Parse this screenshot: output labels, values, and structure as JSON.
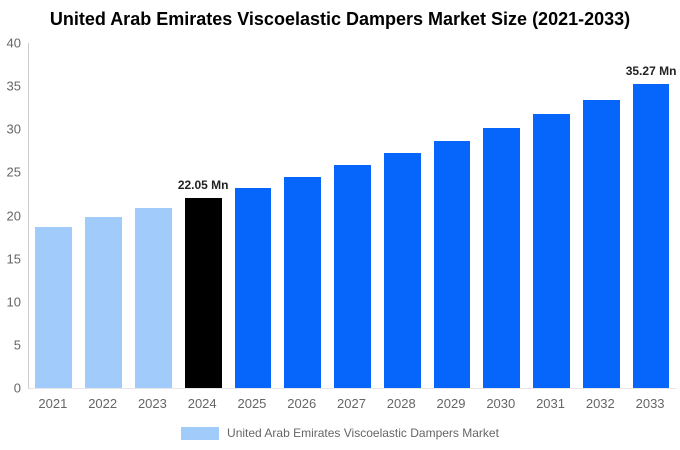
{
  "chart_data": {
    "type": "bar",
    "title": "United Arab Emirates Viscoelastic Dampers Market Size (2021-2033)",
    "unit": "Mn",
    "categories": [
      "2021",
      "2022",
      "2023",
      "2024",
      "2025",
      "2026",
      "2027",
      "2028",
      "2029",
      "2030",
      "2031",
      "2032",
      "2033"
    ],
    "values": [
      18.7,
      19.8,
      20.9,
      22.05,
      23.2,
      24.5,
      25.8,
      27.2,
      28.6,
      30.15,
      31.75,
      33.45,
      35.27
    ],
    "bar_styles": [
      "historical",
      "historical",
      "historical",
      "highlight",
      "forecast",
      "forecast",
      "forecast",
      "forecast",
      "forecast",
      "forecast",
      "forecast",
      "forecast",
      "forecast"
    ],
    "colors": {
      "historical": "#A0CBFA",
      "highlight": "#000000",
      "forecast": "#0666FC"
    },
    "annotations": [
      {
        "index": 3,
        "text": "22.05 Mn"
      },
      {
        "index": 12,
        "text": "35.27 Mn"
      }
    ],
    "xlabel": "",
    "ylabel": "",
    "ylim": [
      0,
      40
    ],
    "yticks": [
      0,
      5,
      10,
      15,
      20,
      25,
      30,
      35,
      40
    ],
    "grid": false,
    "legend": {
      "position": "bottom",
      "label": "United Arab Emirates Viscoelastic Dampers Market",
      "swatch_color": "#A0CBFA"
    }
  }
}
